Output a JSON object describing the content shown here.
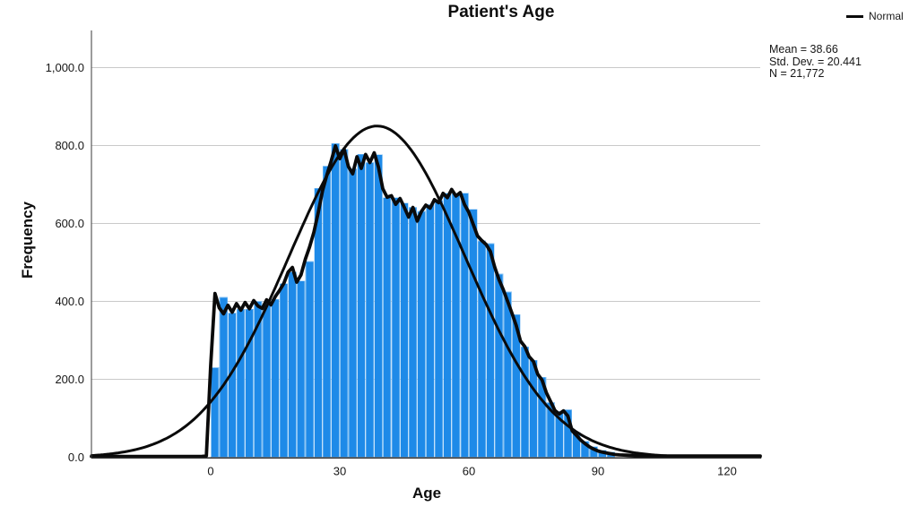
{
  "chart_data": {
    "type": "bar",
    "subtype": "histogram-with-normal-curve",
    "title": "Patient's Age",
    "xlabel": "Age",
    "ylabel": "Frequency",
    "legend": {
      "label": "Normal",
      "position": "top-right"
    },
    "stats_lines": [
      "Mean = 38.66",
      "Std. Dev. = 20.441",
      "N = 21,772"
    ],
    "stats": {
      "mean": 38.66,
      "std_dev": 20.441,
      "n": 21772
    },
    "grid": "horizontal-only",
    "xlim": [
      -27.7,
      127.7
    ],
    "ylim": [
      0,
      1095
    ],
    "x_ticks": [
      {
        "value": 0,
        "label": "0"
      },
      {
        "value": 30,
        "label": "30"
      },
      {
        "value": 60,
        "label": "60"
      },
      {
        "value": 90,
        "label": "90"
      },
      {
        "value": 120,
        "label": "120"
      }
    ],
    "y_ticks": [
      {
        "value": 0,
        "label": "0.0"
      },
      {
        "value": 200,
        "label": "200.0"
      },
      {
        "value": 400,
        "label": "400.0"
      },
      {
        "value": 600,
        "label": "600.0"
      },
      {
        "value": 800,
        "label": "800.0"
      },
      {
        "value": 1000,
        "label": "1,000.0"
      }
    ],
    "bar_color": "#1e8ae8",
    "bar_edge_color": "#8ec6f4",
    "line_color": "#0a0a0a",
    "grid_color": "#c9c9c9",
    "axis_color": "#3a3a3a",
    "bin_start": 0,
    "bin_width": 2,
    "bar_values": [
      230,
      410,
      370,
      380,
      380,
      400,
      390,
      405,
      445,
      475,
      452,
      502,
      690,
      747,
      805,
      790,
      740,
      777,
      756,
      776,
      666,
      666,
      652,
      641,
      631,
      648,
      659,
      677,
      677,
      677,
      636,
      555,
      548,
      470,
      424,
      366,
      283,
      249,
      205,
      140,
      117,
      122,
      64,
      41,
      27,
      18,
      13
    ],
    "freq_line": [
      [
        -27.7,
        2
      ],
      [
        -5,
        2
      ],
      [
        -2,
        2
      ],
      [
        -1,
        4
      ],
      [
        0,
        235
      ],
      [
        1,
        420
      ],
      [
        2,
        383
      ],
      [
        3,
        368
      ],
      [
        4,
        390
      ],
      [
        5,
        372
      ],
      [
        6,
        394
      ],
      [
        7,
        377
      ],
      [
        8,
        397
      ],
      [
        9,
        381
      ],
      [
        10,
        402
      ],
      [
        11,
        388
      ],
      [
        12,
        382
      ],
      [
        13,
        404
      ],
      [
        14,
        391
      ],
      [
        15,
        412
      ],
      [
        16,
        428
      ],
      [
        17,
        446
      ],
      [
        18,
        475
      ],
      [
        19,
        487
      ],
      [
        20,
        449
      ],
      [
        21,
        468
      ],
      [
        22,
        508
      ],
      [
        23,
        540
      ],
      [
        24,
        578
      ],
      [
        25,
        628
      ],
      [
        26,
        684
      ],
      [
        27,
        724
      ],
      [
        28,
        760
      ],
      [
        29,
        799
      ],
      [
        30,
        766
      ],
      [
        31,
        791
      ],
      [
        32,
        746
      ],
      [
        33,
        727
      ],
      [
        34,
        771
      ],
      [
        35,
        741
      ],
      [
        36,
        777
      ],
      [
        37,
        756
      ],
      [
        38,
        781
      ],
      [
        39,
        744
      ],
      [
        40,
        689
      ],
      [
        41,
        667
      ],
      [
        42,
        671
      ],
      [
        43,
        649
      ],
      [
        44,
        664
      ],
      [
        45,
        641
      ],
      [
        46,
        616
      ],
      [
        47,
        641
      ],
      [
        48,
        606
      ],
      [
        49,
        631
      ],
      [
        50,
        647
      ],
      [
        51,
        639
      ],
      [
        52,
        661
      ],
      [
        53,
        653
      ],
      [
        54,
        677
      ],
      [
        55,
        666
      ],
      [
        56,
        687
      ],
      [
        57,
        670
      ],
      [
        58,
        679
      ],
      [
        59,
        648
      ],
      [
        60,
        628
      ],
      [
        61,
        598
      ],
      [
        62,
        568
      ],
      [
        63,
        556
      ],
      [
        64,
        546
      ],
      [
        65,
        528
      ],
      [
        66,
        488
      ],
      [
        67,
        456
      ],
      [
        68,
        430
      ],
      [
        69,
        400
      ],
      [
        70,
        370
      ],
      [
        71,
        338
      ],
      [
        72,
        298
      ],
      [
        73,
        284
      ],
      [
        74,
        258
      ],
      [
        75,
        246
      ],
      [
        76,
        213
      ],
      [
        77,
        198
      ],
      [
        78,
        166
      ],
      [
        79,
        143
      ],
      [
        80,
        120
      ],
      [
        81,
        111
      ],
      [
        82,
        119
      ],
      [
        83,
        106
      ],
      [
        84,
        68
      ],
      [
        85,
        56
      ],
      [
        86,
        44
      ],
      [
        87,
        35
      ],
      [
        88,
        27
      ],
      [
        89,
        21
      ],
      [
        90,
        16
      ],
      [
        91,
        13
      ],
      [
        92,
        11
      ],
      [
        93,
        9
      ],
      [
        94,
        7
      ],
      [
        95,
        6
      ],
      [
        97,
        5
      ],
      [
        100,
        4
      ],
      [
        105,
        3
      ],
      [
        110,
        3
      ],
      [
        115,
        3
      ],
      [
        120,
        3
      ],
      [
        127.7,
        3
      ]
    ],
    "normal_curve": {
      "mean": 38.66,
      "std_dev": 20.441,
      "n": 21772,
      "bin_width": 2
    }
  }
}
